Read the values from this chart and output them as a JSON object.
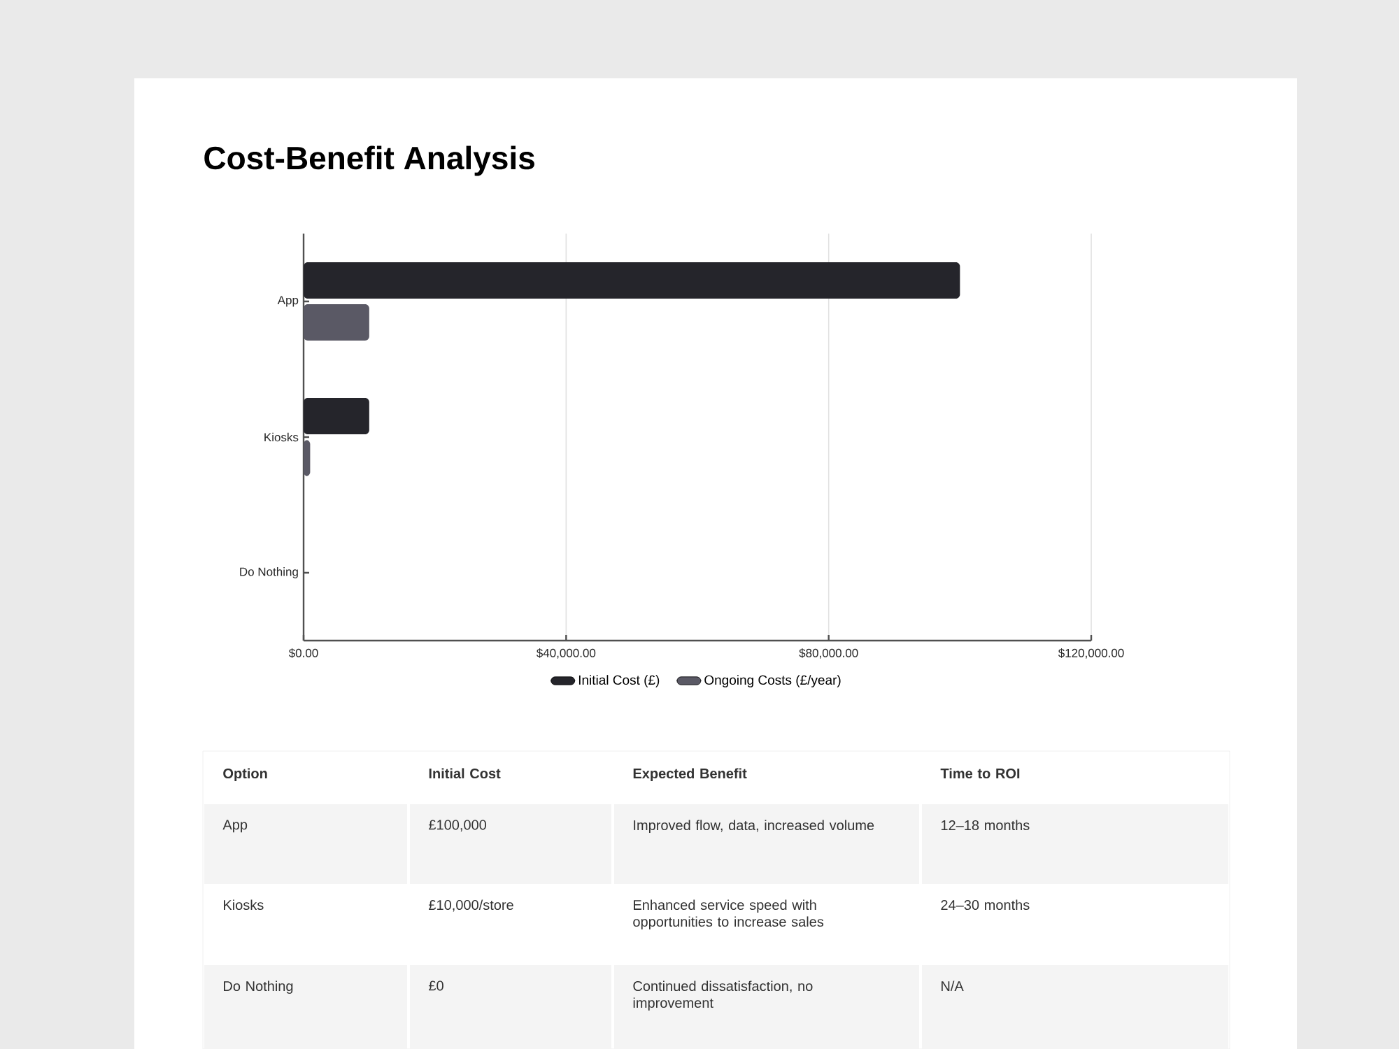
{
  "chart_data": {
    "type": "bar",
    "orientation": "horizontal",
    "title": "Cost-Benefit Analysis",
    "categories": [
      "App",
      "Kiosks",
      "Do Nothing"
    ],
    "series": [
      {
        "name": "Initial Cost (£)",
        "color": "#25252b",
        "values": [
          100000,
          10000,
          0
        ]
      },
      {
        "name": "Ongoing Costs (£/year)",
        "color": "#5a5965",
        "values": [
          10000,
          1000,
          0
        ]
      }
    ],
    "xlim": [
      0,
      120000
    ],
    "xticks": [
      {
        "value": 0,
        "label": "$0.00"
      },
      {
        "value": 40000,
        "label": "$40,000.00"
      },
      {
        "value": 80000,
        "label": "$80,000.00"
      },
      {
        "value": 120000,
        "label": "$120,000.00"
      }
    ],
    "grid": "x",
    "legend": "bottom",
    "annotations": [
      "Option",
      "Initial Cost",
      "Expected Benefit",
      "Time to ROI",
      "App",
      "£100,000",
      "Improved flow, data, increased volume",
      "12–18 months",
      "Kiosks",
      "£10,000/store",
      "Enhanced service speed with opportunities to increase sales",
      "24–30 months",
      "Do Nothing",
      "£0",
      "Continued dissatisfaction, no improvement",
      "N/A"
    ]
  }
}
